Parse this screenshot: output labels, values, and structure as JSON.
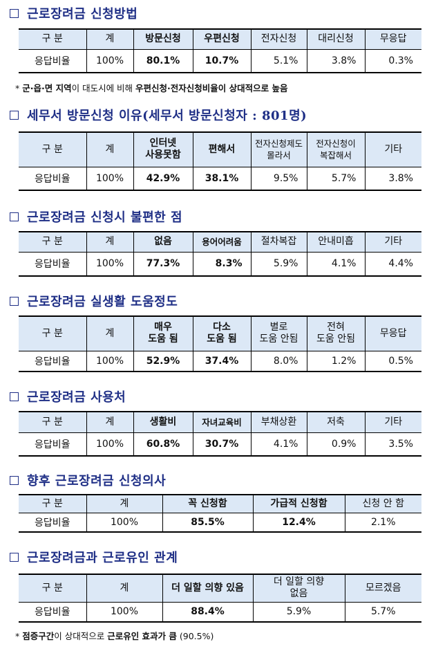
{
  "sections": [
    {
      "title": "근로장려금 신청방법",
      "headers": [
        "구 분",
        "계",
        "방문신청",
        "우편신청",
        "전자신청",
        "대리신청",
        "무응답"
      ],
      "row": [
        "응답비율",
        "100%",
        "80.1%",
        "10.7%",
        "5.1%",
        "3.8%",
        "0.3%"
      ]
    },
    {
      "title": "세무서 방문신청 이유(세무서 방문신청자 : 801명)",
      "headers": [
        "구 분",
        "계",
        "인터넷\n사용못함",
        "편해서",
        "전자신청제도\n몰라서",
        "전자신청이\n복잡해서",
        "기타"
      ],
      "row": [
        "응답비율",
        "100%",
        "42.9%",
        "38.1%",
        "9.5%",
        "5.7%",
        "3.8%"
      ]
    },
    {
      "title": "근로장려금 신청시 불편한 점",
      "headers": [
        "구 분",
        "계",
        "없음",
        "용어어려움",
        "절차복잡",
        "안내미흡",
        "기타"
      ],
      "row": [
        "응답비율",
        "100%",
        "77.3%",
        "8.3%",
        "5.9%",
        "4.1%",
        "4.4%"
      ]
    },
    {
      "title": "근로장려금 실생활 도움정도",
      "headers": [
        "구 분",
        "계",
        "매우\n도움 됨",
        "다소\n도움 됨",
        "별로\n도움 안됨",
        "전혀\n도움 안됨",
        "무응답"
      ],
      "row": [
        "응답비율",
        "100%",
        "52.9%",
        "37.4%",
        "8.0%",
        "1.2%",
        "0.5%"
      ]
    },
    {
      "title": "근로장려금 사용처",
      "headers": [
        "구 분",
        "계",
        "생활비",
        "자녀교육비",
        "부채상환",
        "저축",
        "기타"
      ],
      "row": [
        "응답비율",
        "100%",
        "60.8%",
        "30.7%",
        "4.1%",
        "0.9%",
        "3.5%"
      ]
    },
    {
      "title": "향후 근로장려금 신청의사",
      "headers": [
        "구 분",
        "계",
        "꼭 신청함",
        "가급적 신청함",
        "신청 안 함"
      ],
      "row": [
        "응답비율",
        "100%",
        "85.5%",
        "12.4%",
        "2.1%"
      ]
    },
    {
      "title": "근로장려금과 근로유인 관계",
      "headers": [
        "구 분",
        "계",
        "더 일할 의향 있음",
        "더 일할 의향\n없음",
        "모르겠음"
      ],
      "row": [
        "응답비율",
        "100%",
        "88.4%",
        "5.9%",
        "5.7%"
      ]
    }
  ],
  "notes": {
    "note1": {
      "star": "*",
      "p1": "군·읍·면 지역",
      "p2": "이 대도시에 비해 ",
      "p3": "우편신청·전자신청비율이 상대적으로 높음"
    },
    "note2": {
      "star": "*",
      "p1": "점증구간",
      "p2": "이 상대적으로 ",
      "p3": "근로유인 효과가 큼",
      "p4": " (90.5%)"
    }
  }
}
